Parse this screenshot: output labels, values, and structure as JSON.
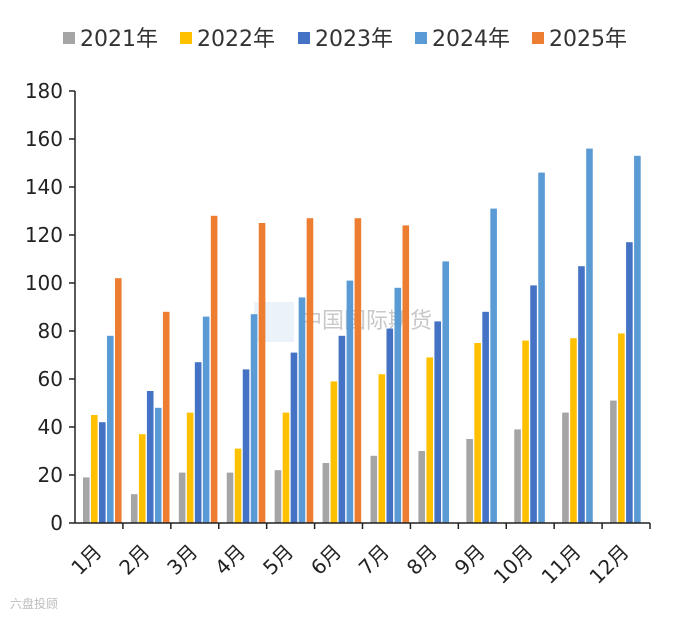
{
  "chart_data": {
    "type": "bar",
    "title": "",
    "xlabel": "",
    "ylabel": "",
    "ylim": [
      0,
      180
    ],
    "yticks": [
      0,
      20,
      40,
      60,
      80,
      100,
      120,
      140,
      160,
      180
    ],
    "grid": false,
    "legend_position": "top",
    "categories": [
      "1月",
      "2月",
      "3月",
      "4月",
      "5月",
      "6月",
      "7月",
      "8月",
      "9月",
      "10月",
      "11月",
      "12月"
    ],
    "series": [
      {
        "name": "2021年",
        "color": "#a5a5a5",
        "values": [
          19,
          12,
          21,
          21,
          22,
          25,
          28,
          30,
          35,
          39,
          46,
          51
        ]
      },
      {
        "name": "2022年",
        "color": "#ffc000",
        "values": [
          45,
          37,
          46,
          31,
          46,
          59,
          62,
          69,
          75,
          76,
          77,
          79
        ]
      },
      {
        "name": "2023年",
        "color": "#4472c4",
        "values": [
          42,
          55,
          67,
          64,
          71,
          78,
          81,
          84,
          88,
          99,
          107,
          117
        ]
      },
      {
        "name": "2024年",
        "color": "#5b9bd5",
        "values": [
          78,
          48,
          86,
          87,
          94,
          101,
          98,
          109,
          131,
          146,
          156,
          153
        ]
      },
      {
        "name": "2025年",
        "color": "#ed7d31",
        "values": [
          102,
          88,
          128,
          125,
          127,
          127,
          124,
          null,
          null,
          null,
          null,
          null
        ]
      }
    ]
  },
  "watermark": {
    "text": "中国国际期货",
    "source": "六盘投顾"
  }
}
